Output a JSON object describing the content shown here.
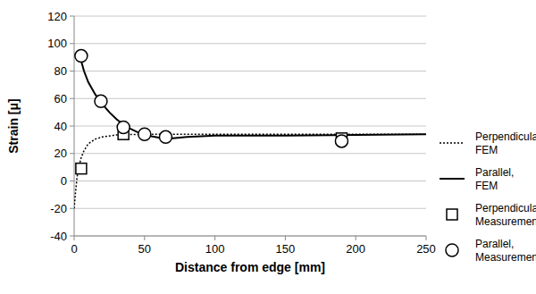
{
  "chart_data": {
    "type": "line",
    "x_label": "Distance from edge [mm]",
    "y_label": "Strain [μ]",
    "xlim": [
      0,
      250
    ],
    "xticks": [
      0,
      50,
      100,
      150,
      200,
      250
    ],
    "ylim": [
      -40,
      120
    ],
    "yticks": [
      -40,
      -20,
      0,
      20,
      40,
      60,
      80,
      100,
      120
    ],
    "grid": true,
    "legend": "right",
    "series": [
      {
        "name": "Perpendicular, FEM",
        "type": "line",
        "line_style": "dotted",
        "color": "#000000",
        "x": [
          0,
          1,
          2,
          3,
          5,
          7,
          10,
          15,
          20,
          30,
          50,
          75,
          100,
          150,
          200,
          250
        ],
        "values": [
          -20,
          -8,
          2,
          9,
          17,
          22,
          27,
          30.5,
          32,
          33.5,
          34,
          34,
          34,
          34,
          34,
          34
        ]
      },
      {
        "name": "Parallel, FEM",
        "type": "line",
        "line_style": "solid",
        "color": "#000000",
        "x": [
          4,
          7,
          10,
          15,
          20,
          25,
          30,
          35,
          40,
          45,
          50,
          55,
          60,
          70,
          80,
          100,
          150,
          200,
          250
        ],
        "values": [
          91,
          80,
          72,
          63,
          56,
          50,
          45,
          41,
          38,
          35.5,
          34,
          32.5,
          31.5,
          31,
          32,
          33,
          33,
          33.5,
          34
        ]
      },
      {
        "name": "Perpendicular, Measurement",
        "type": "scatter",
        "marker": "square",
        "color": "#000000",
        "x": [
          5,
          35,
          190
        ],
        "values": [
          9,
          34,
          31
        ]
      },
      {
        "name": "Parallel, Measurement",
        "type": "scatter",
        "marker": "circle",
        "color": "#000000",
        "x": [
          5,
          19,
          35,
          50,
          65,
          190
        ],
        "values": [
          91,
          58,
          39,
          34,
          32,
          29
        ]
      }
    ]
  }
}
